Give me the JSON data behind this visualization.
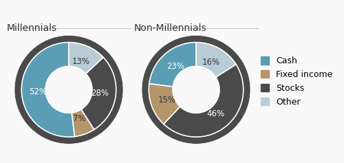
{
  "millennials_title": "Millennials",
  "non_millennials_title": "Non-Millennials",
  "millennials_values": [
    52,
    7,
    28,
    13
  ],
  "non_millennials_values": [
    23,
    15,
    46,
    16
  ],
  "categories": [
    "Cash",
    "Fixed income",
    "Stocks",
    "Other"
  ],
  "colors": [
    "#5b9db5",
    "#b5956a",
    "#4a4a4a",
    "#b8cdd6"
  ],
  "ring_color": "#4a4a4a",
  "background_color": "#f9f9f9",
  "label_fontsize": 8.5,
  "title_fontsize": 10,
  "legend_fontsize": 9
}
